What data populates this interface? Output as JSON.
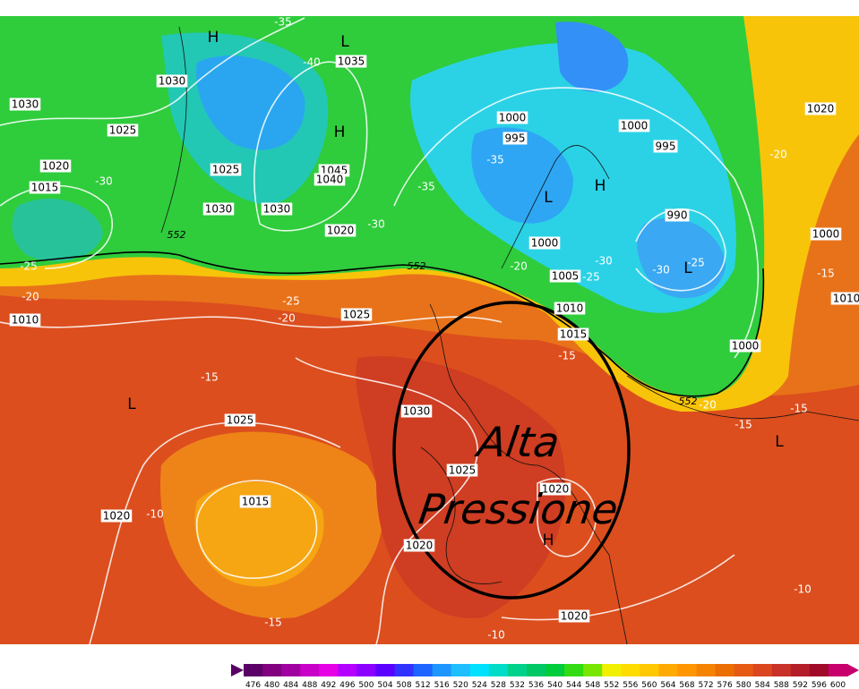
{
  "isobar_labels": [
    1030,
    1030,
    1025,
    1020,
    1015,
    1025,
    1030,
    1030,
    1035,
    1045,
    1040,
    1020,
    1000,
    995,
    1000,
    995,
    990,
    1000,
    1005,
    1010,
    1015,
    1000,
    1020,
    1000,
    1010,
    1025,
    1030,
    1025,
    1025,
    1020,
    1015,
    1020,
    1020,
    1020,
    1010
  ],
  "temperature_labels": [
    -35,
    -40,
    -30,
    -25,
    -20,
    -25,
    -20,
    -30,
    -35,
    -35,
    -20,
    -30,
    -25,
    -30,
    -25,
    -15,
    -20,
    -15,
    -15,
    -20,
    -15,
    -15,
    -10,
    -15,
    -10,
    -10
  ],
  "pressure_centers": [
    "H",
    "L",
    "H",
    "L",
    "H",
    "L",
    "L",
    "L",
    "H"
  ],
  "contour_552_labels": [
    552,
    552,
    552
  ],
  "annotation": [
    "Alta",
    "Pressione"
  ],
  "color_scale": {
    "labels": [
      476,
      480,
      484,
      488,
      492,
      496,
      500,
      504,
      508,
      512,
      516,
      520,
      524,
      528,
      532,
      536,
      540,
      544,
      548,
      552,
      556,
      560,
      564,
      568,
      572,
      576,
      580,
      584,
      588,
      592,
      596,
      600
    ],
    "colors": [
      "#5a0066",
      "#80007f",
      "#a000a0",
      "#c800c8",
      "#e600e6",
      "#b400ff",
      "#8c00ff",
      "#5a00ff",
      "#3232ff",
      "#1e64ff",
      "#1e96ff",
      "#1ebeff",
      "#00e1ff",
      "#00dcc8",
      "#00d28c",
      "#00c864",
      "#00cd3c",
      "#32dc14",
      "#78e600",
      "#f0f000",
      "#ffdc00",
      "#ffc800",
      "#ffaa00",
      "#ff9600",
      "#f58200",
      "#eb6e00",
      "#e65a14",
      "#dc461e",
      "#c83228",
      "#b41e28",
      "#a00a28",
      "#c8006e"
    ]
  }
}
